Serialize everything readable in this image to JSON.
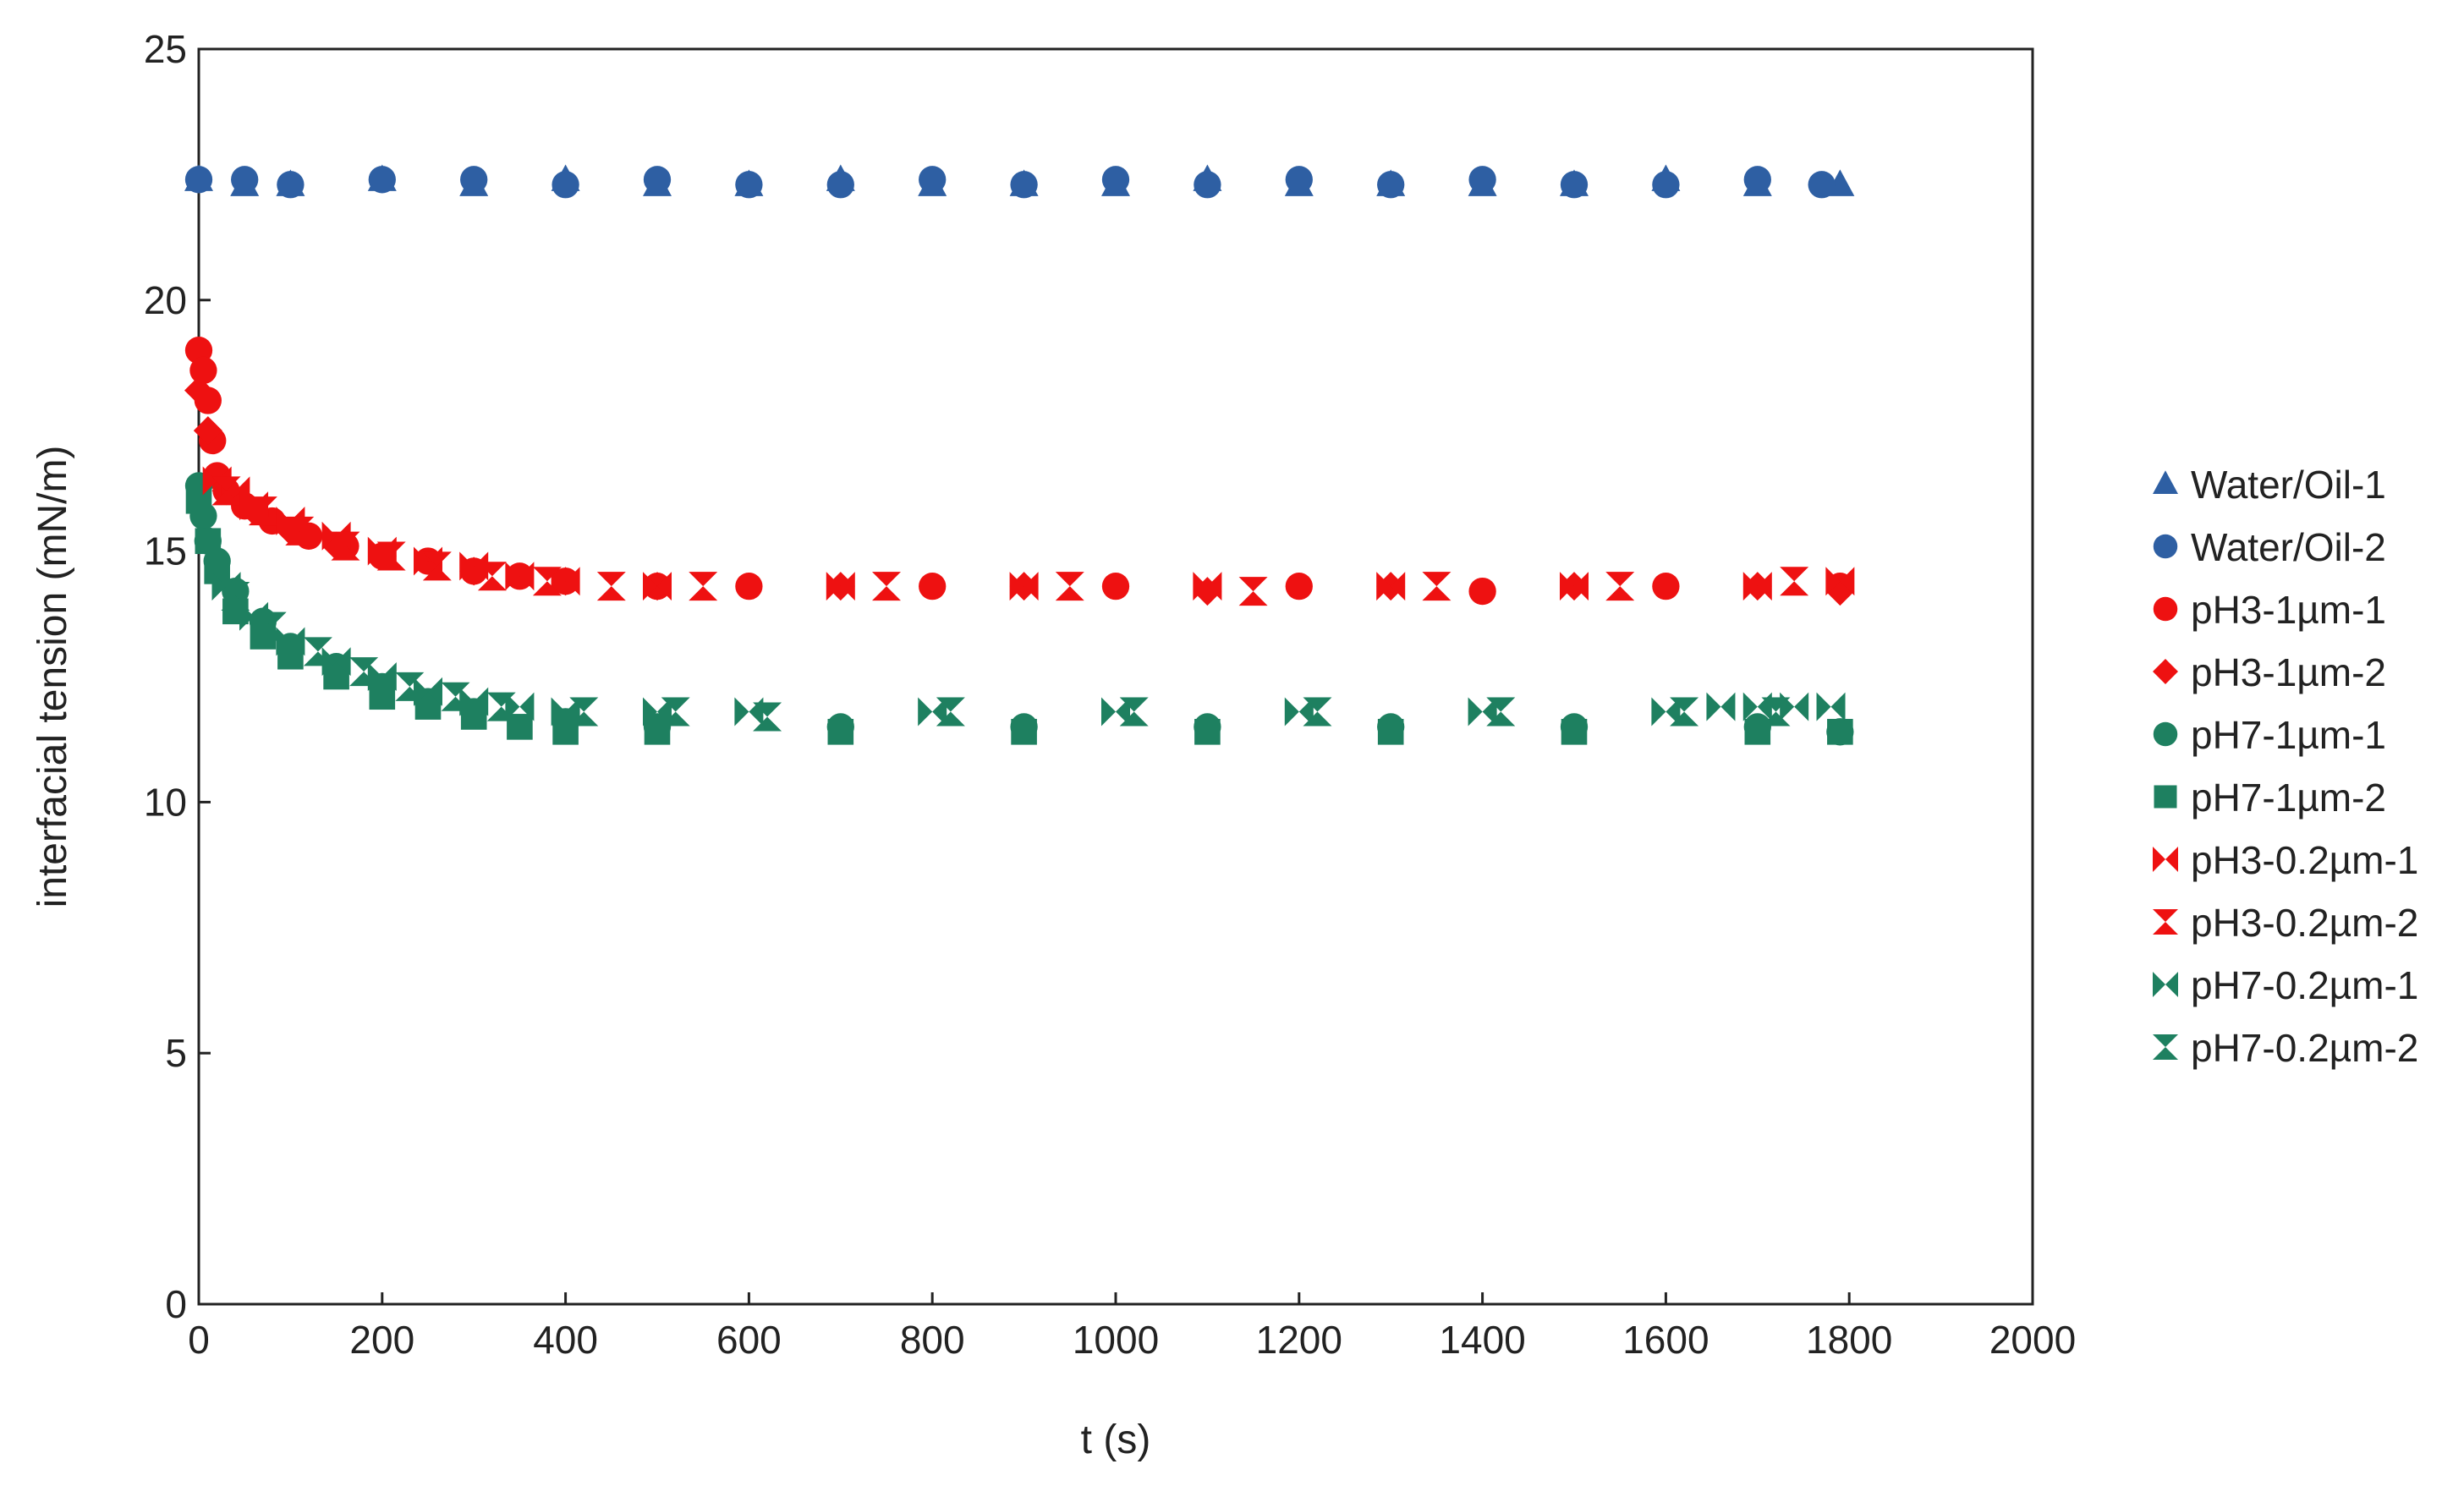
{
  "chart_data": {
    "type": "scatter",
    "xlabel": "t (s)",
    "ylabel": "interfacial tension (mN/m)",
    "xlim": [
      0,
      2000
    ],
    "ylim": [
      0,
      25
    ],
    "xticks": [
      0,
      200,
      400,
      600,
      800,
      1000,
      1200,
      1400,
      1600,
      1800,
      2000
    ],
    "yticks": [
      0,
      5,
      10,
      15,
      20,
      25
    ],
    "grid": false,
    "legend_position": "right",
    "series": [
      {
        "name": "Water/Oil-1",
        "marker": "triangle-up",
        "color": "#2e5fa3",
        "x": [
          0,
          50,
          100,
          200,
          300,
          400,
          500,
          600,
          700,
          800,
          900,
          1000,
          1100,
          1200,
          1300,
          1400,
          1500,
          1600,
          1700,
          1790
        ],
        "y": [
          22.4,
          22.3,
          22.3,
          22.4,
          22.3,
          22.4,
          22.3,
          22.3,
          22.4,
          22.3,
          22.3,
          22.3,
          22.4,
          22.3,
          22.3,
          22.3,
          22.3,
          22.4,
          22.3,
          22.3
        ]
      },
      {
        "name": "Water/Oil-2",
        "marker": "circle",
        "color": "#2e5fa3",
        "x": [
          0,
          50,
          100,
          200,
          300,
          400,
          500,
          600,
          700,
          800,
          900,
          1000,
          1100,
          1200,
          1300,
          1400,
          1500,
          1600,
          1700,
          1770
        ],
        "y": [
          22.4,
          22.4,
          22.3,
          22.4,
          22.4,
          22.3,
          22.4,
          22.3,
          22.3,
          22.4,
          22.3,
          22.4,
          22.3,
          22.4,
          22.3,
          22.4,
          22.3,
          22.3,
          22.4,
          22.3
        ]
      },
      {
        "name": "pH3-1µm-1",
        "marker": "circle",
        "color": "#ee1111",
        "x": [
          0,
          5,
          10,
          15,
          20,
          30,
          50,
          80,
          120,
          160,
          200,
          250,
          300,
          350,
          400,
          500,
          600,
          800,
          1000,
          1200,
          1400,
          1600,
          1790
        ],
        "y": [
          19.0,
          18.6,
          18.0,
          17.2,
          16.5,
          16.2,
          15.9,
          15.6,
          15.3,
          15.1,
          14.9,
          14.8,
          14.6,
          14.5,
          14.4,
          14.3,
          14.3,
          14.3,
          14.3,
          14.3,
          14.2,
          14.3,
          14.3
        ]
      },
      {
        "name": "pH3-1µm-2",
        "marker": "diamond",
        "color": "#ee1111",
        "x": [
          0,
          10,
          30,
          60,
          100,
          150,
          200,
          300,
          400,
          500,
          700,
          900,
          1100,
          1300,
          1500,
          1700,
          1790
        ],
        "y": [
          18.2,
          17.4,
          16.2,
          15.8,
          15.4,
          15.1,
          14.9,
          14.6,
          14.4,
          14.3,
          14.3,
          14.3,
          14.2,
          14.3,
          14.3,
          14.3,
          14.2
        ]
      },
      {
        "name": "pH7-1µm-1",
        "marker": "circle",
        "color": "#1e8060",
        "x": [
          0,
          5,
          10,
          20,
          40,
          70,
          100,
          150,
          200,
          250,
          300,
          400,
          500,
          700,
          900,
          1100,
          1300,
          1500,
          1700,
          1790
        ],
        "y": [
          16.3,
          15.7,
          15.2,
          14.8,
          14.2,
          13.6,
          13.1,
          12.7,
          12.3,
          12.0,
          11.8,
          11.6,
          11.5,
          11.5,
          11.5,
          11.5,
          11.5,
          11.5,
          11.5,
          11.4
        ]
      },
      {
        "name": "pH7-1µm-2",
        "marker": "square",
        "color": "#1e8060",
        "x": [
          0,
          10,
          20,
          40,
          70,
          100,
          150,
          200,
          250,
          300,
          350,
          400,
          500,
          700,
          900,
          1100,
          1300,
          1500,
          1700,
          1790
        ],
        "y": [
          16.0,
          15.2,
          14.6,
          13.8,
          13.3,
          12.9,
          12.5,
          12.1,
          11.9,
          11.7,
          11.5,
          11.4,
          11.4,
          11.4,
          11.4,
          11.4,
          11.4,
          11.4,
          11.4,
          11.4
        ]
      },
      {
        "name": "pH3-0.2µm-1",
        "marker": "bowtie",
        "color": "#ee1111",
        "x": [
          20,
          40,
          60,
          100,
          150,
          200,
          250,
          300,
          350,
          400,
          500,
          700,
          900,
          1100,
          1300,
          1500,
          1700,
          1790
        ],
        "y": [
          16.4,
          16.2,
          15.9,
          15.6,
          15.3,
          15.0,
          14.8,
          14.7,
          14.5,
          14.4,
          14.3,
          14.3,
          14.3,
          14.3,
          14.3,
          14.3,
          14.3,
          14.4
        ]
      },
      {
        "name": "pH3-0.2µm-2",
        "marker": "hourglass",
        "color": "#ee1111",
        "x": [
          30,
          70,
          110,
          160,
          210,
          260,
          320,
          380,
          450,
          550,
          750,
          950,
          1150,
          1350,
          1550,
          1740
        ],
        "y": [
          16.2,
          15.8,
          15.4,
          15.1,
          14.9,
          14.7,
          14.5,
          14.4,
          14.3,
          14.3,
          14.3,
          14.3,
          14.2,
          14.3,
          14.3,
          14.4
        ]
      },
      {
        "name": "pH7-0.2µm-1",
        "marker": "bowtie",
        "color": "#1e8060",
        "x": [
          30,
          60,
          100,
          150,
          200,
          250,
          300,
          350,
          400,
          500,
          600,
          800,
          1000,
          1200,
          1400,
          1600,
          1660,
          1700,
          1740,
          1780
        ],
        "y": [
          14.3,
          13.7,
          13.2,
          12.8,
          12.5,
          12.2,
          12.0,
          11.9,
          11.8,
          11.8,
          11.8,
          11.8,
          11.8,
          11.8,
          11.8,
          11.8,
          11.9,
          11.9,
          11.9,
          11.9
        ]
      },
      {
        "name": "pH7-0.2µm-2",
        "marker": "hourglass",
        "color": "#1e8060",
        "x": [
          40,
          80,
          130,
          180,
          230,
          280,
          330,
          420,
          520,
          620,
          820,
          1020,
          1220,
          1420,
          1620,
          1720
        ],
        "y": [
          14.1,
          13.5,
          13.0,
          12.6,
          12.3,
          12.1,
          11.9,
          11.8,
          11.8,
          11.7,
          11.8,
          11.8,
          11.8,
          11.8,
          11.8,
          11.8
        ]
      }
    ]
  }
}
